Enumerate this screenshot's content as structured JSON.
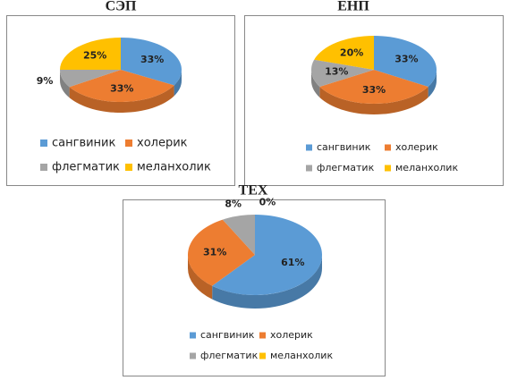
{
  "chart_data": [
    {
      "type": "pie",
      "title": "СЭП",
      "categories": [
        "сангвиник",
        "холерик",
        "флегматик",
        "меланхолик"
      ],
      "values": [
        33,
        33,
        9,
        25
      ],
      "value_labels": [
        "33%",
        "33%",
        "9%",
        "25%"
      ],
      "colors": [
        "#5b9bd5",
        "#ed7d31",
        "#a5a5a5",
        "#ffc000"
      ]
    },
    {
      "type": "pie",
      "title": "ЕНП",
      "categories": [
        "сангвиник",
        "холерик",
        "флегматик",
        "меланхолик"
      ],
      "values": [
        33,
        33,
        13,
        20
      ],
      "value_labels": [
        "33%",
        "33%",
        "13%",
        "20%"
      ],
      "colors": [
        "#5b9bd5",
        "#ed7d31",
        "#a5a5a5",
        "#ffc000"
      ]
    },
    {
      "type": "pie",
      "title": "ТЕХ",
      "categories": [
        "сангвиник",
        "холерик",
        "флегматик",
        "меланхолик"
      ],
      "values": [
        61,
        31,
        8,
        0
      ],
      "value_labels": [
        "61%",
        "31%",
        "8%",
        "0%"
      ],
      "colors": [
        "#5b9bd5",
        "#ed7d31",
        "#a5a5a5",
        "#ffc000"
      ]
    }
  ]
}
